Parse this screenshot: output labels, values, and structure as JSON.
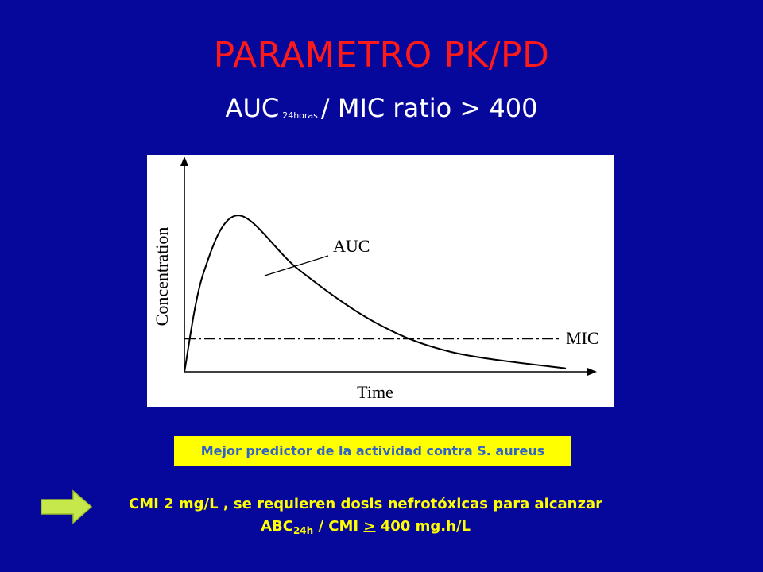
{
  "slide": {
    "title": "PARAMETRO PK/PD",
    "subtitle": {
      "prefix": "AUC",
      "subscript": "24horas",
      "suffix": "/ MIC ratio > 400"
    },
    "background_color": "#06079b",
    "title_color": "#ff1a1a"
  },
  "chart_data": {
    "type": "line",
    "xlabel": "Time",
    "ylabel": "Concentration",
    "annotations": [
      "AUC",
      "MIC"
    ],
    "series": [
      {
        "x": [
          0,
          0.05,
          0.14,
          0.3,
          0.5,
          0.7,
          1.0
        ],
        "y": [
          0,
          0.6,
          0.95,
          0.62,
          0.3,
          0.12,
          0.02
        ]
      }
    ],
    "threshold": {
      "label": "MIC",
      "y": 0.2
    },
    "xlim": [
      0,
      1
    ],
    "ylim": [
      0,
      1.1
    ]
  },
  "predictor": {
    "text": "Mejor predictor de la actividad contra S. aureus",
    "background": "#ffff00",
    "text_color": "#2f62c8"
  },
  "note": {
    "arrow_icon": "right-arrow-icon",
    "line1": "CMI  2 mg/L , se requieren dosis nefrotóxicas para alcanzar",
    "line2_prefix": "ABC",
    "line2_sub": "24h",
    "line2_mid": " / CMI ",
    "line2_ge": ">",
    "line2_suffix": " 400 mg.h/L",
    "color": "#ffff00"
  }
}
